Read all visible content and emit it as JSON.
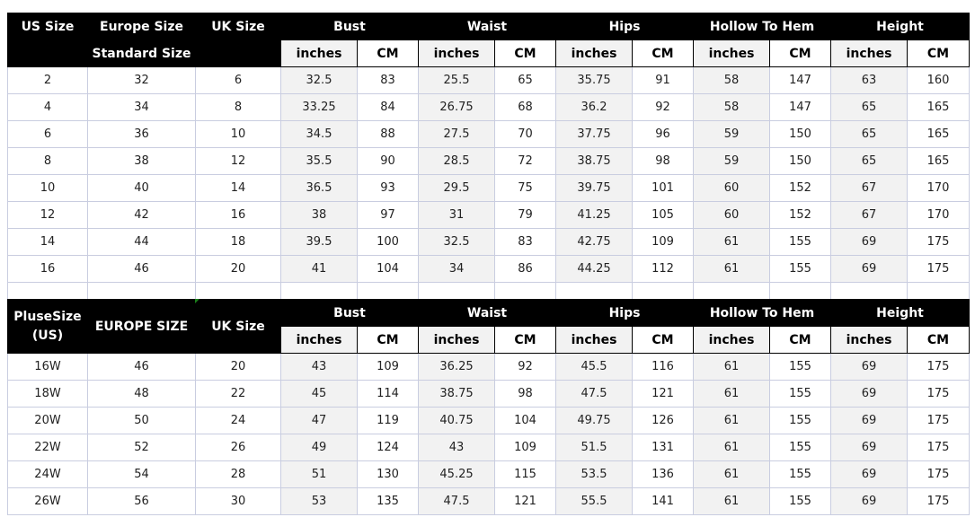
{
  "table1": {
    "headers": {
      "us": "US Size",
      "eu": "Europe Size",
      "eu_sub": "Standard Size",
      "uk": "UK Size"
    },
    "groups": [
      "Bust",
      "Waist",
      "Hips",
      "Hollow To Hem",
      "Height"
    ],
    "units": [
      "inches",
      "CM"
    ],
    "rows": [
      [
        "2",
        "32",
        "6",
        "32.5",
        "83",
        "25.5",
        "65",
        "35.75",
        "91",
        "58",
        "147",
        "63",
        "160"
      ],
      [
        "4",
        "34",
        "8",
        "33.25",
        "84",
        "26.75",
        "68",
        "36.2",
        "92",
        "58",
        "147",
        "65",
        "165"
      ],
      [
        "6",
        "36",
        "10",
        "34.5",
        "88",
        "27.5",
        "70",
        "37.75",
        "96",
        "59",
        "150",
        "65",
        "165"
      ],
      [
        "8",
        "38",
        "12",
        "35.5",
        "90",
        "28.5",
        "72",
        "38.75",
        "98",
        "59",
        "150",
        "65",
        "165"
      ],
      [
        "10",
        "40",
        "14",
        "36.5",
        "93",
        "29.5",
        "75",
        "39.75",
        "101",
        "60",
        "152",
        "67",
        "170"
      ],
      [
        "12",
        "42",
        "16",
        "38",
        "97",
        "31",
        "79",
        "41.25",
        "105",
        "60",
        "152",
        "67",
        "170"
      ],
      [
        "14",
        "44",
        "18",
        "39.5",
        "100",
        "32.5",
        "83",
        "42.75",
        "109",
        "61",
        "155",
        "69",
        "175"
      ],
      [
        "16",
        "46",
        "20",
        "41",
        "104",
        "34",
        "86",
        "44.25",
        "112",
        "61",
        "155",
        "69",
        "175"
      ]
    ]
  },
  "table2": {
    "headers": {
      "us": "PluseSize (US)",
      "eu": "EUROPE SIZE",
      "uk": "UK Size"
    },
    "groups": [
      "Bust",
      "Waist",
      "Hips",
      "Hollow To Hem",
      "Height"
    ],
    "units": [
      "inches",
      "CM"
    ],
    "rows": [
      [
        "16W",
        "46",
        "20",
        "43",
        "109",
        "36.25",
        "92",
        "45.5",
        "116",
        "61",
        "155",
        "69",
        "175"
      ],
      [
        "18W",
        "48",
        "22",
        "45",
        "114",
        "38.75",
        "98",
        "47.5",
        "121",
        "61",
        "155",
        "69",
        "175"
      ],
      [
        "20W",
        "50",
        "24",
        "47",
        "119",
        "40.75",
        "104",
        "49.75",
        "126",
        "61",
        "155",
        "69",
        "175"
      ],
      [
        "22W",
        "52",
        "26",
        "49",
        "124",
        "43",
        "109",
        "51.5",
        "131",
        "61",
        "155",
        "69",
        "175"
      ],
      [
        "24W",
        "54",
        "28",
        "51",
        "130",
        "45.25",
        "115",
        "53.5",
        "136",
        "61",
        "155",
        "69",
        "175"
      ],
      [
        "26W",
        "56",
        "30",
        "53",
        "135",
        "47.5",
        "121",
        "55.5",
        "141",
        "61",
        "155",
        "69",
        "175"
      ]
    ]
  },
  "colors": {
    "header_bg": "#000000",
    "inches_bg": "#f2f2f2",
    "grid": "#c9cde0"
  }
}
